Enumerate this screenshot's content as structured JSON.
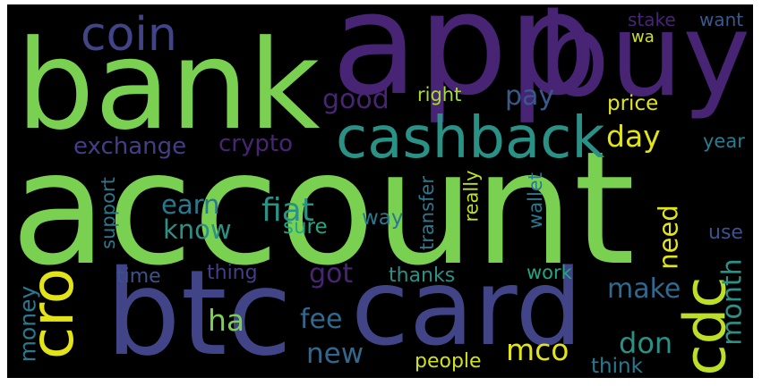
{
  "words": [
    {
      "text": "account",
      "color": "#7ad151"
    },
    {
      "text": "bank",
      "color": "#7ad151"
    },
    {
      "text": "app",
      "color": "#482475"
    },
    {
      "text": "buy",
      "color": "#482475"
    },
    {
      "text": "btc",
      "color": "#414487"
    },
    {
      "text": "card",
      "color": "#414487"
    },
    {
      "text": "cashback",
      "color": "#2a9186"
    },
    {
      "text": "coin",
      "color": "#414487"
    },
    {
      "text": "cro",
      "color": "#e3e418"
    },
    {
      "text": "cdc",
      "color": "#bddf26"
    },
    {
      "text": "crypto",
      "color": "#482475"
    },
    {
      "text": "exchange",
      "color": "#433e85"
    },
    {
      "text": "good",
      "color": "#482475"
    },
    {
      "text": "pay",
      "color": "#38598c"
    },
    {
      "text": "right",
      "color": "#a8db34"
    },
    {
      "text": "stake",
      "color": "#482475"
    },
    {
      "text": "want",
      "color": "#38598c"
    },
    {
      "text": "wa",
      "color": "#d0e11c"
    },
    {
      "text": "price",
      "color": "#e3e418"
    },
    {
      "text": "day",
      "color": "#e3e418"
    },
    {
      "text": "year",
      "color": "#287d8e"
    },
    {
      "text": "earn",
      "color": "#2a788e"
    },
    {
      "text": "fiat",
      "color": "#2a9186"
    },
    {
      "text": "know",
      "color": "#2a9186"
    },
    {
      "text": "support",
      "color": "#2a788e"
    },
    {
      "text": "sure",
      "color": "#22a785"
    },
    {
      "text": "way",
      "color": "#2a788e"
    },
    {
      "text": "transfer",
      "color": "#2a788e"
    },
    {
      "text": "really",
      "color": "#bddf26"
    },
    {
      "text": "wallet",
      "color": "#2a788e"
    },
    {
      "text": "need",
      "color": "#e3e418"
    },
    {
      "text": "use",
      "color": "#3b528b"
    },
    {
      "text": "got",
      "color": "#482475"
    },
    {
      "text": "make",
      "color": "#31688e"
    },
    {
      "text": "month",
      "color": "#2a9186"
    },
    {
      "text": "time",
      "color": "#3b528b"
    },
    {
      "text": "thing",
      "color": "#433e85"
    },
    {
      "text": "thanks",
      "color": "#2a9186"
    },
    {
      "text": "work",
      "color": "#22a785"
    },
    {
      "text": "money",
      "color": "#2a788e"
    },
    {
      "text": "ha",
      "color": "#7ad151"
    },
    {
      "text": "fee",
      "color": "#31688e"
    },
    {
      "text": "new",
      "color": "#31688e"
    },
    {
      "text": "mco",
      "color": "#e3e418"
    },
    {
      "text": "don",
      "color": "#2a9186"
    },
    {
      "text": "people",
      "color": "#d0e11c"
    },
    {
      "text": "think",
      "color": "#2a788e"
    }
  ]
}
